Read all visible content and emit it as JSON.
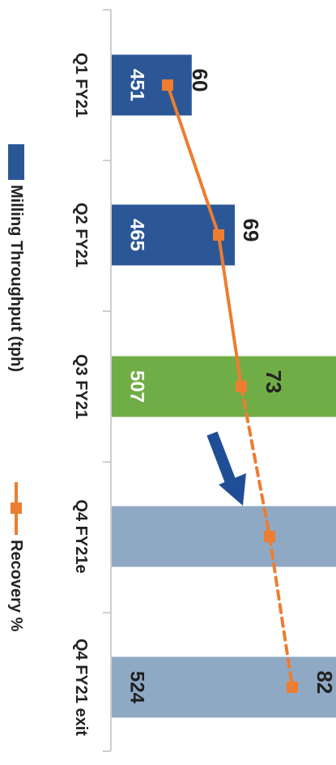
{
  "chart_data": {
    "type": "bar",
    "orientation": "rotated-90-clockwise",
    "categories": [
      "Q1 FY21",
      "Q2 FY21",
      "Q3 FY21",
      "Q4 FY21e",
      "Q4 FY21 exit"
    ],
    "series": [
      {
        "name": "Milling Throughput (tph)",
        "type": "bar",
        "values": [
          451,
          465,
          507,
          520,
          524
        ],
        "value_labels": [
          "451",
          "465",
          "507",
          "",
          "524"
        ],
        "colors": [
          "#2b5797",
          "#2b5797",
          "#70ad47",
          "#8fa9c4",
          "#8fa9c4"
        ]
      },
      {
        "name": "Recovery %",
        "type": "line",
        "values": [
          60,
          69,
          73,
          78,
          82
        ],
        "value_labels": [
          "60",
          "69",
          "73",
          "",
          "82"
        ],
        "color": "#ed7d31",
        "dashed_from_index": 2
      }
    ],
    "grid": false,
    "legend_position": "left",
    "annotation": "arrow-from-Q3-to-Q4"
  },
  "legend": {
    "bar_label": "Milling Throughput (tph)",
    "line_label": "Recovery %"
  },
  "colors": {
    "bar_actual": "#2b5797",
    "bar_highlight": "#70ad47",
    "bar_estimate": "#8fa9c4",
    "line": "#ed7d31",
    "arrow": "#1f4e96",
    "axis": "#bfbfbf",
    "text": "#222222",
    "bar_text": "#ffffff",
    "bar_text_dark": "#1f1f1f"
  }
}
